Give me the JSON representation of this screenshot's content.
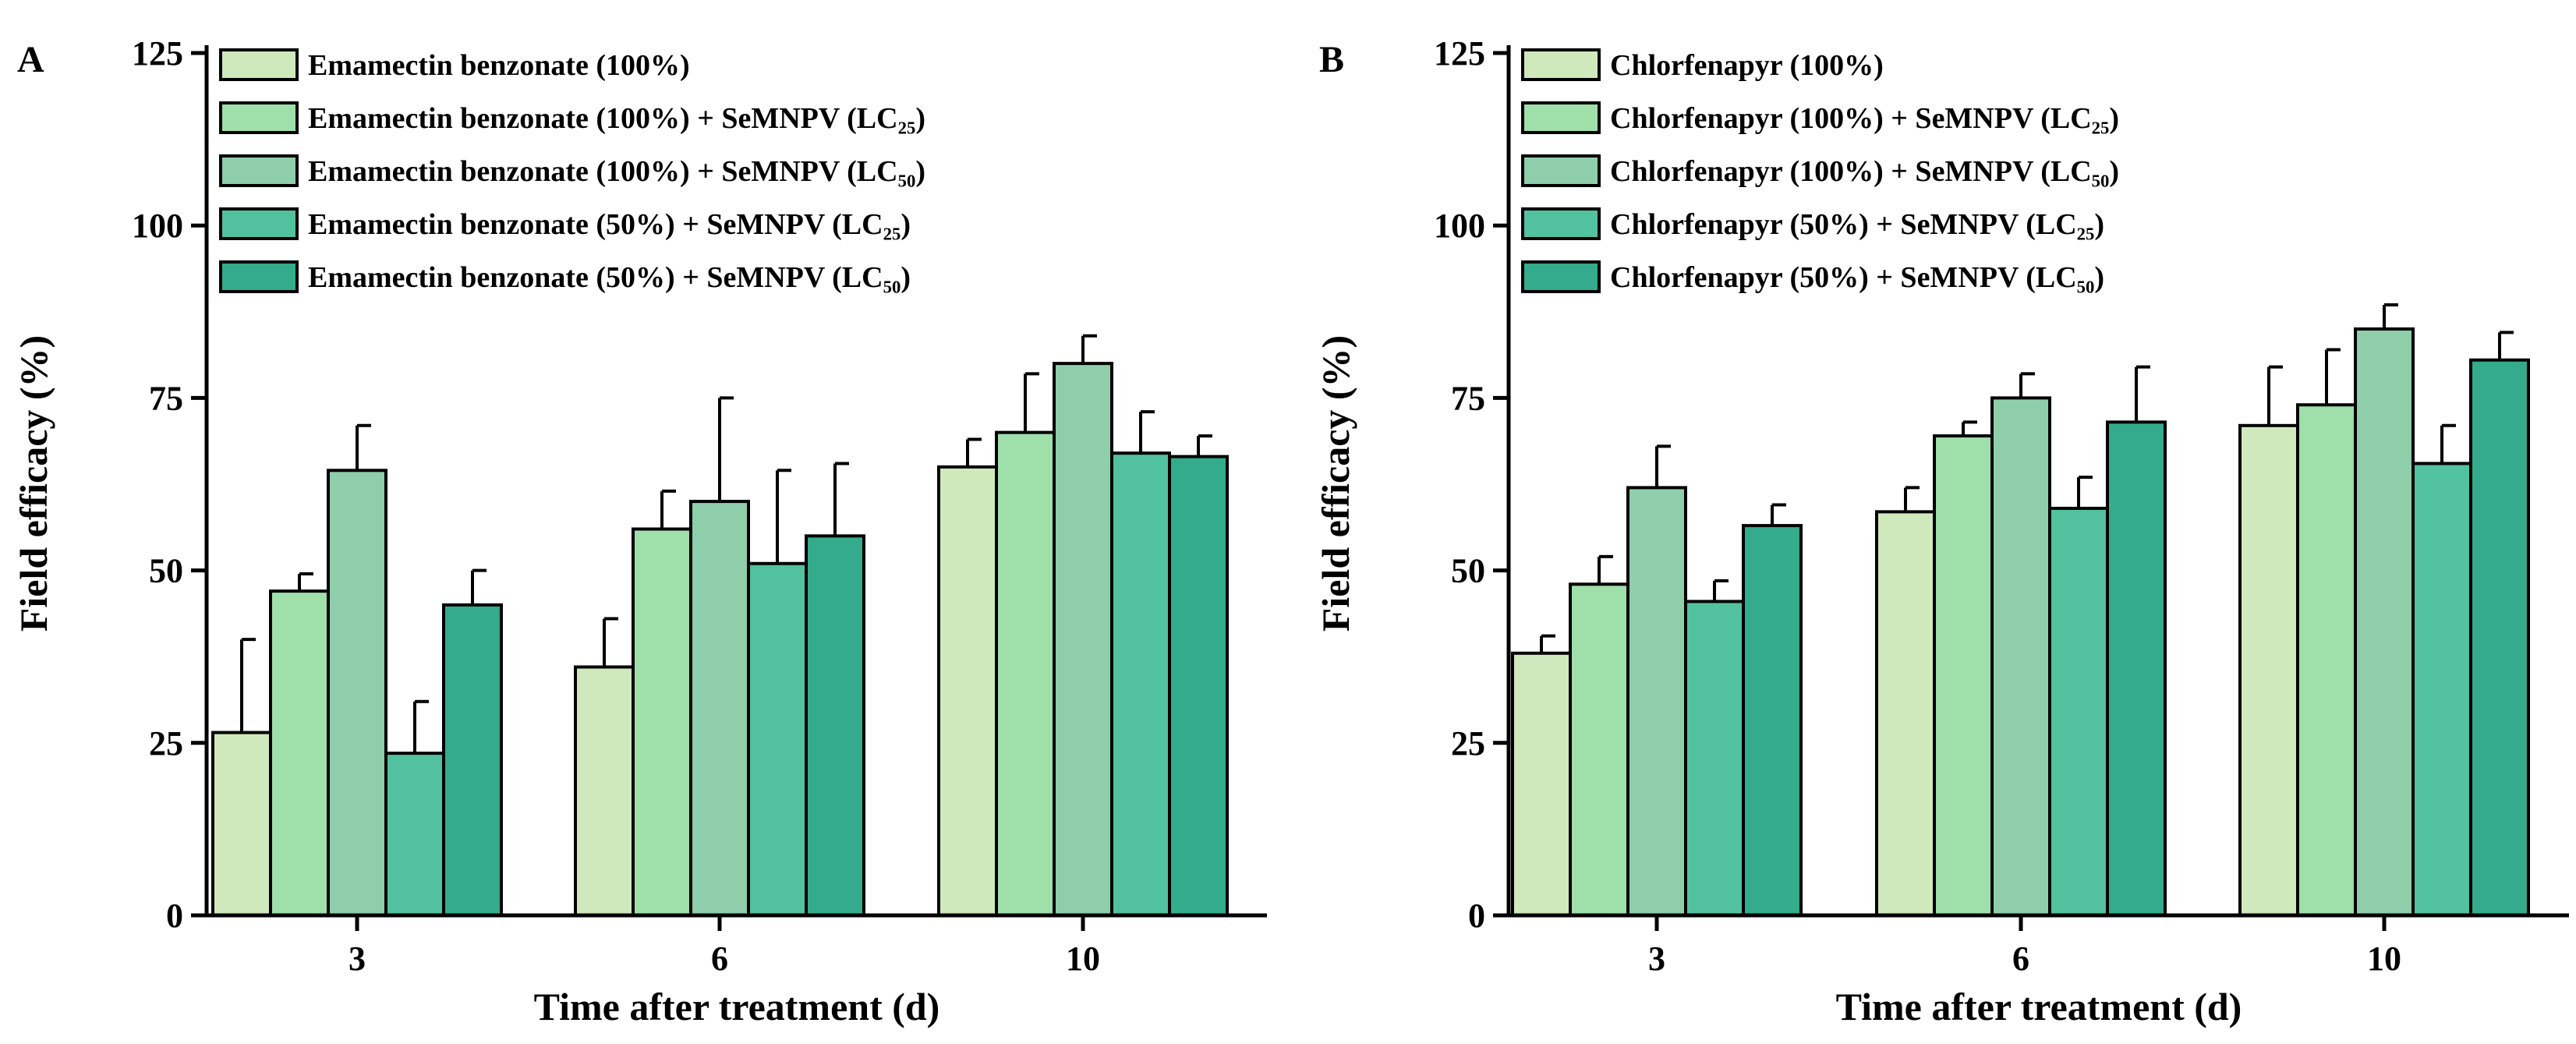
{
  "colors": [
    "#cfe9bd",
    "#9fdfaa",
    "#8fceab",
    "#52c29e",
    "#33ab8c"
  ],
  "chart_data": [
    {
      "type": "bar",
      "panel": "A",
      "xlabel": "Time after treatment (d)",
      "ylabel": "Field efficacy (%)",
      "ylim": [
        0,
        125
      ],
      "yticks": [
        "0",
        "25",
        "50",
        "75",
        "100",
        "125"
      ],
      "categories": [
        "3",
        "6",
        "10"
      ],
      "legend_position": "top-left",
      "series": [
        {
          "name": "Emamectin benzonate (100%)",
          "values": [
            26.5,
            36,
            65
          ],
          "errors": [
            13.5,
            7,
            4
          ]
        },
        {
          "name": "Emamectin benzonate (100%) + SeMNPV (LC₂₅)",
          "values": [
            47,
            56,
            70
          ],
          "errors": [
            2.5,
            5.5,
            8.5
          ]
        },
        {
          "name": "Emamectin benzonate (100%) + SeMNPV (LC₅₀)",
          "values": [
            64.5,
            60,
            80
          ],
          "errors": [
            6.5,
            15,
            4
          ]
        },
        {
          "name": "Emamectin benzonate (50%) + SeMNPV (LC₂₅)",
          "values": [
            23.5,
            51,
            67
          ],
          "errors": [
            7.5,
            13.5,
            6
          ]
        },
        {
          "name": "Emamectin benzonate (50%) + SeMNPV (LC₅₀)",
          "values": [
            45,
            55,
            66.5
          ],
          "errors": [
            5,
            10.5,
            3
          ]
        }
      ]
    },
    {
      "type": "bar",
      "panel": "B",
      "xlabel": "Time after treatment (d)",
      "ylabel": "Field efficacy (%)",
      "ylim": [
        0,
        125
      ],
      "yticks": [
        "0",
        "25",
        "50",
        "75",
        "100",
        "125"
      ],
      "categories": [
        "3",
        "6",
        "10"
      ],
      "legend_position": "top-left",
      "series": [
        {
          "name": "Chlorfenapyr (100%)",
          "values": [
            38,
            58.5,
            71
          ],
          "errors": [
            2.5,
            3.5,
            8.5
          ]
        },
        {
          "name": "Chlorfenapyr (100%) + SeMNPV (LC₂₅)",
          "values": [
            48,
            69.5,
            74
          ],
          "errors": [
            4,
            2,
            8
          ]
        },
        {
          "name": "Chlorfenapyr (100%) + SeMNPV (LC₅₀)",
          "values": [
            62,
            75,
            85
          ],
          "errors": [
            6,
            3.5,
            3.5
          ]
        },
        {
          "name": "Chlorfenapyr (50%) + SeMNPV (LC₂₅)",
          "values": [
            45.5,
            59,
            65.5
          ],
          "errors": [
            3,
            4.5,
            5.5
          ]
        },
        {
          "name": "Chlorfenapyr (50%) + SeMNPV (LC₅₀)",
          "values": [
            56.5,
            71.5,
            80.5
          ],
          "errors": [
            3,
            8,
            4
          ]
        }
      ]
    }
  ]
}
